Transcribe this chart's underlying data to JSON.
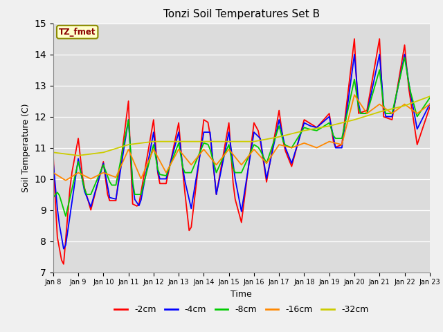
{
  "title": "Tonzi Soil Temperatures Set B",
  "xlabel": "Time",
  "ylabel": "Soil Temperature (C)",
  "ylim": [
    7.0,
    15.0
  ],
  "yticks": [
    7.0,
    8.0,
    9.0,
    10.0,
    11.0,
    12.0,
    13.0,
    14.0,
    15.0
  ],
  "date_labels": [
    "Jan 8",
    "Jan 9",
    "Jan 10",
    "Jan 11",
    "Jan 12",
    "Jan 13",
    "Jan 14",
    "Jan 15",
    "Jan 16",
    "Jan 17",
    "Jan 18",
    "Jan 19",
    "Jan 20",
    "Jan 21",
    "Jan 22",
    "Jan 23"
  ],
  "annotation_text": "TZ_fmet",
  "annotation_color": "#8B0000",
  "annotation_bg": "#FFFFCC",
  "annotation_edge": "#8B8B00",
  "line_colors": {
    "-2cm": "#FF0000",
    "-4cm": "#0000FF",
    "-8cm": "#00CC00",
    "-16cm": "#FF8800",
    "-32cm": "#CCCC00"
  },
  "bg_color": "#DCDCDC",
  "fig_bg": "#F0F0F0"
}
